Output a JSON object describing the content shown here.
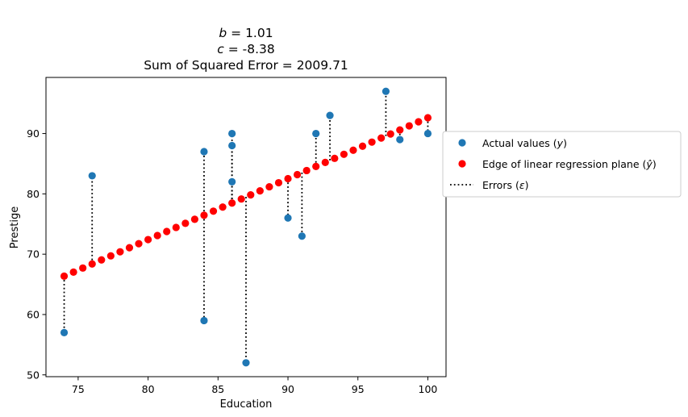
{
  "chart_data": {
    "type": "scatter",
    "title_lines": [
      {
        "var": "b",
        "rest": " = 1.01"
      },
      {
        "var": "c",
        "rest": " = -8.38"
      },
      {
        "var": "",
        "rest": "Sum of Squared Error = 2009.71"
      }
    ],
    "xlabel": "Education",
    "ylabel": "Prestige",
    "xlim": [
      72.7,
      101.3
    ],
    "ylim": [
      49.7,
      99.3
    ],
    "xticks": [
      75,
      80,
      85,
      90,
      95,
      100
    ],
    "yticks": [
      50,
      60,
      70,
      80,
      90
    ],
    "grid": false,
    "legend_position": "outside-right",
    "model": {
      "b": 1.01,
      "c": -8.38
    },
    "actual": {
      "name": "Actual values",
      "symbol": "y",
      "color": "#1f77b4",
      "x": [
        74,
        76,
        84,
        84,
        86,
        86,
        86,
        87,
        90,
        91,
        92,
        93,
        97,
        98,
        100
      ],
      "y": [
        57,
        83,
        59,
        87,
        82,
        88,
        90,
        52,
        76,
        73,
        90,
        93,
        97,
        89,
        90
      ]
    },
    "fitted": {
      "name": "Edge of linear regression plane",
      "symbol": "ŷ",
      "color": "#ff0000",
      "x_start": 74,
      "x_end": 100,
      "count": 40
    },
    "errors": {
      "name": "Errors",
      "symbol": "ε",
      "color": "#000000"
    }
  }
}
